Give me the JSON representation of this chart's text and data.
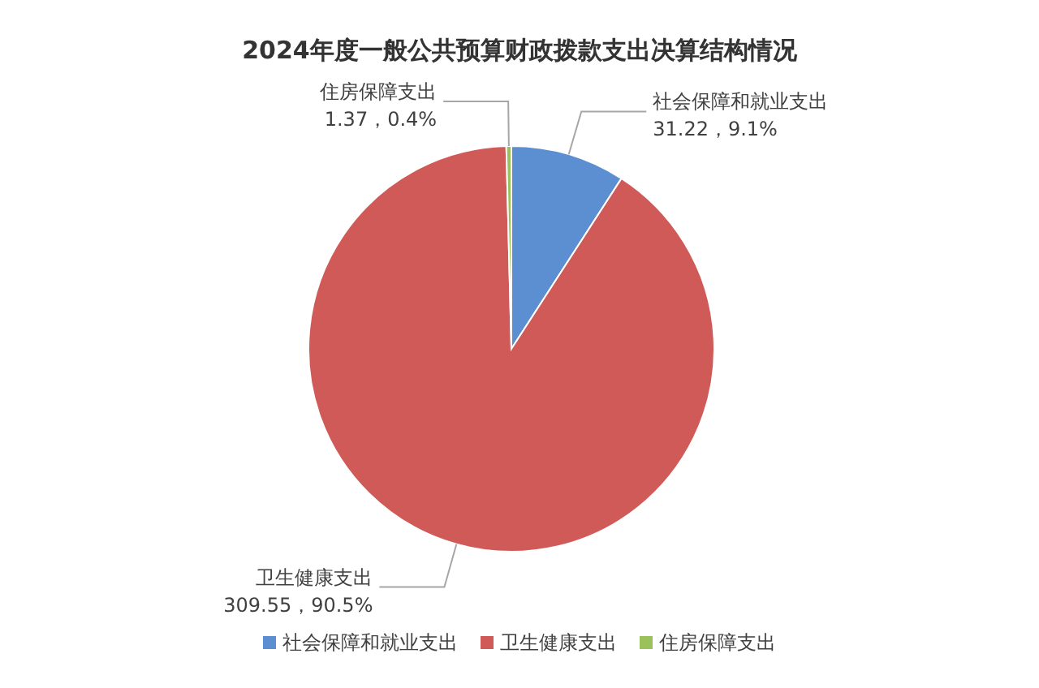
{
  "chart_data": {
    "type": "pie",
    "title": "2024年度一般公共预算财政拨款支出决算结构情况",
    "categories": [
      "社会保障和就业支出",
      "卫生健康支出",
      "住房保障支出"
    ],
    "values": [
      31.22,
      309.55,
      1.37
    ],
    "colors": [
      "#5b8fd1",
      "#d05a58",
      "#9bc15a"
    ],
    "value_labels": [
      "31.22，9.1%",
      "309.55，90.5%",
      "1.37，0.4%"
    ],
    "legend": "bottom"
  }
}
